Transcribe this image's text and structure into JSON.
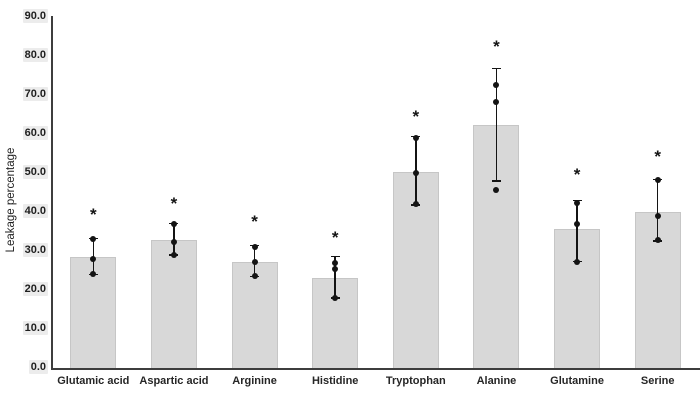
{
  "chart_data": {
    "type": "bar",
    "title": "",
    "ylabel": "Leakage percentage",
    "xlabel": "",
    "ylim": [
      0,
      90
    ],
    "grid": false,
    "legend": null,
    "ytick_values": [
      0,
      10,
      20,
      30,
      40,
      50,
      60,
      70,
      80,
      90
    ],
    "ytick_labels": [
      "0.0",
      "10.0",
      "20.0",
      "30.0",
      "40.0",
      "50.0",
      "60.0",
      "70.0",
      "80.0",
      "90.0"
    ],
    "categories": [
      "Glutamic acid",
      "Aspartic acid",
      "Arginine",
      "Histidine",
      "Tryptophan",
      "Alanine",
      "Glutamine",
      "Serine"
    ],
    "values": [
      28.4,
      32.7,
      27.3,
      23.2,
      50.2,
      62.2,
      35.6,
      40.1
    ],
    "error_high": [
      33.2,
      37.0,
      31.4,
      28.6,
      59.4,
      76.8,
      43.0,
      48.3
    ],
    "error_low": [
      24.0,
      29.0,
      23.4,
      17.9,
      41.8,
      47.9,
      27.3,
      32.6
    ],
    "points": [
      [
        33.0,
        28.0,
        24.2
      ],
      [
        37.0,
        32.2,
        29.1
      ],
      [
        31.0,
        27.3,
        23.5
      ],
      [
        26.9,
        25.5,
        17.9
      ],
      [
        59.0,
        49.9,
        42.0
      ],
      [
        72.6,
        68.3,
        45.7
      ],
      [
        42.4,
        36.8,
        27.1
      ],
      [
        48.1,
        39.1,
        32.9
      ]
    ],
    "significance_marker": "*",
    "marker_y": [
      39.7,
      42.6,
      37.9,
      33.8,
      65.0,
      82.9,
      49.9,
      54.7
    ],
    "colors": {
      "bar_fill": "#d8d8d8",
      "bar_border": "#c6c6c6",
      "axis": "#3d3d3d",
      "marks": "#141414",
      "tick_chip_bg": "#ececec",
      "text": "#1f1f1f"
    }
  }
}
